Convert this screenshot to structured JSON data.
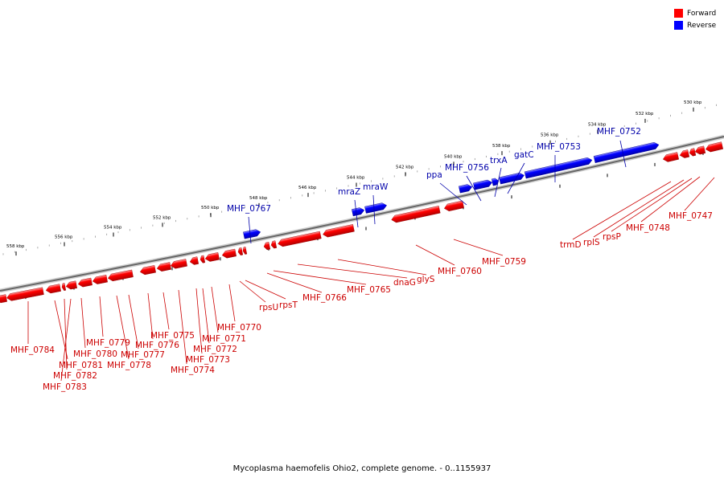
{
  "legend": {
    "forward_label": "Forward",
    "reverse_label": "Reverse",
    "forward_color": "#ff0000",
    "reverse_color": "#0000ff"
  },
  "caption": "Mycoplasma haemofelis Ohio2, complete genome. - 0..1155937",
  "colors": {
    "forward_label": "#cc0000",
    "reverse_label": "#0000aa",
    "backbone": "#666666"
  },
  "ruler_ticks": [
    "558 kbp",
    "556 kbp",
    "554 kbp",
    "552 kbp",
    "550 kbp",
    "548 kbp",
    "546 kbp",
    "544 kbp",
    "542 kbp",
    "540 kbp",
    "538 kbp",
    "536 kbp",
    "534 kbp",
    "532 kbp",
    "530 kbp"
  ],
  "reverse_labels": [
    "MHF_0767",
    "mraZ",
    "mraW",
    "ppa",
    "MHF_0756",
    "trxA",
    "gatC",
    "MHF_0753",
    "MHF_0752"
  ],
  "forward_labels": [
    "MHF_0784",
    "MHF_0781",
    "MHF_0782",
    "MHF_0783",
    "MHF_0780",
    "MHF_0779",
    "MHF_0778",
    "MHF_0777",
    "MHF_0776",
    "MHF_0775",
    "MHF_0774",
    "MHF_0773",
    "MHF_0772",
    "MHF_0771",
    "MHF_0770",
    "rpsU",
    "rpsT",
    "MHF_0766",
    "MHF_0765",
    "dnaG",
    "glyS",
    "MHF_0760",
    "MHF_0759",
    "trmD",
    "rplS",
    "rpsP",
    "MHF_0748",
    "MHF_0747"
  ]
}
